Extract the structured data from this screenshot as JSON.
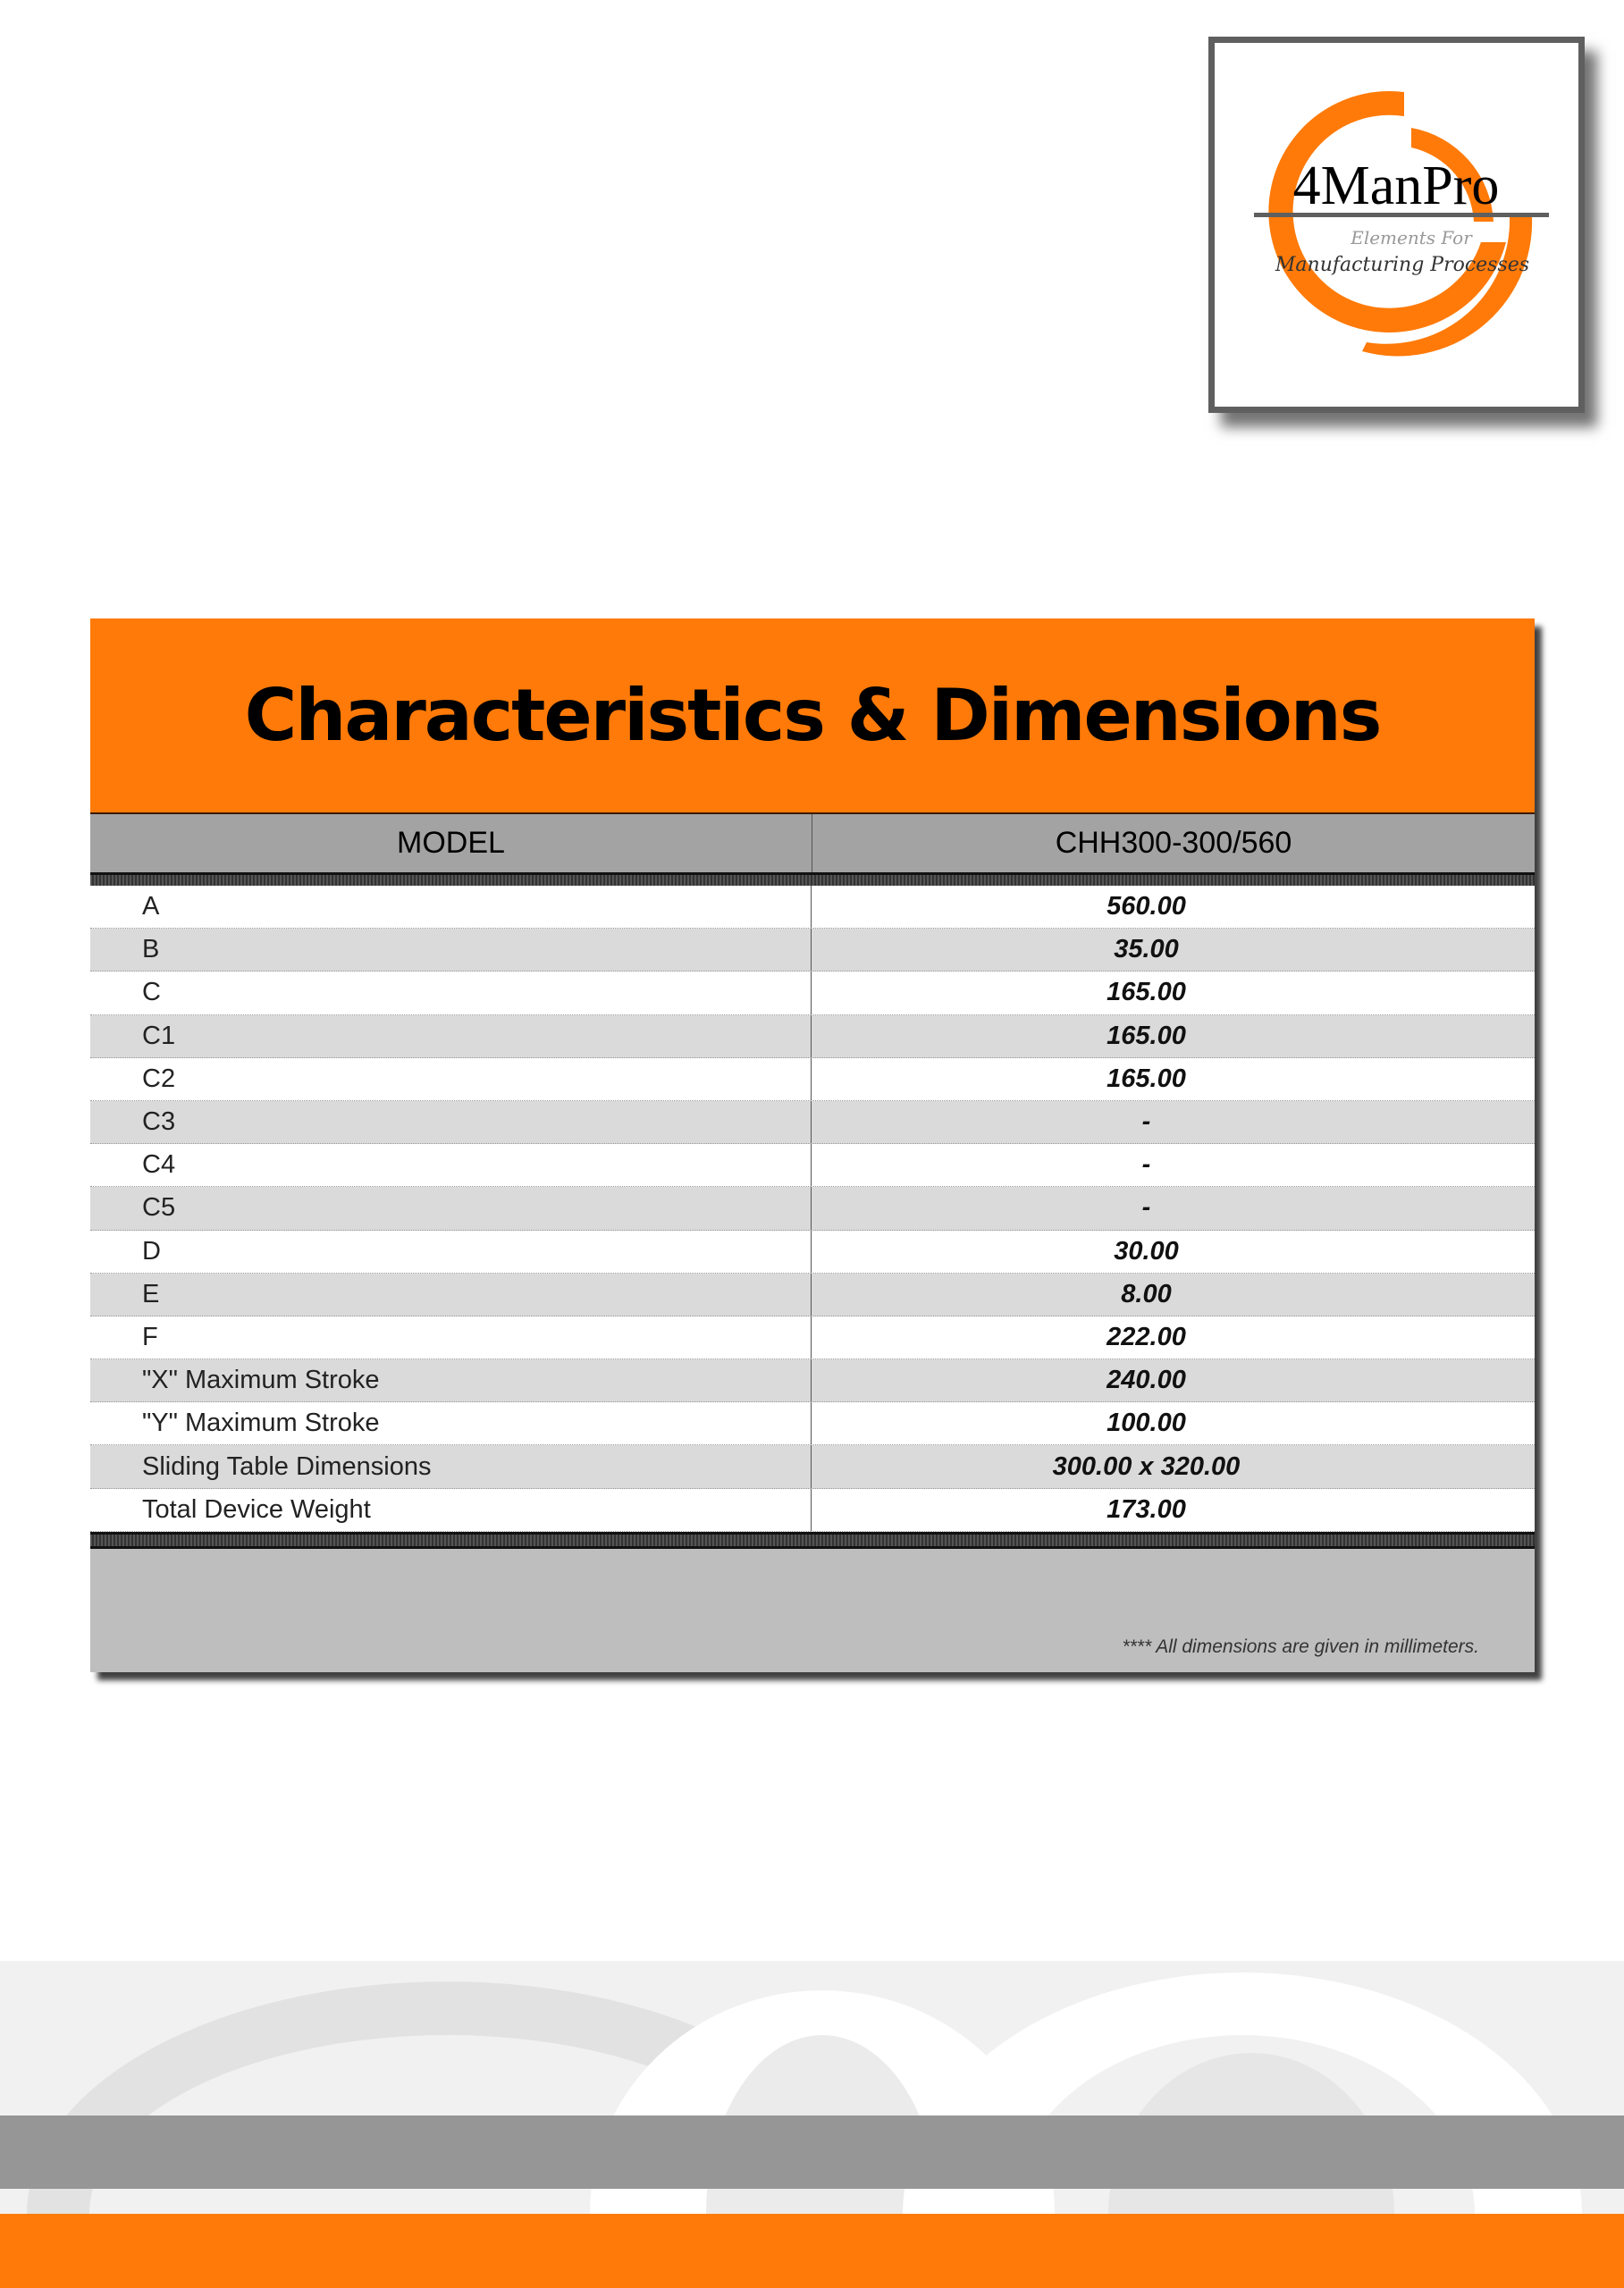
{
  "logo": {
    "brand": "4ManPro",
    "tagline_1": "Elements For",
    "tagline_2": "Manufacturing Processes",
    "accent": "#ff7a08"
  },
  "table": {
    "title": "Characteristics & Dimensions",
    "header": {
      "label": "MODEL",
      "value": "CHH300-300/560"
    },
    "rows": [
      {
        "label": "A",
        "value": "560.00"
      },
      {
        "label": "B",
        "value": "35.00"
      },
      {
        "label": "C",
        "value": "165.00"
      },
      {
        "label": "C1",
        "value": "165.00"
      },
      {
        "label": "C2",
        "value": "165.00"
      },
      {
        "label": "C3",
        "value": "-"
      },
      {
        "label": "C4",
        "value": "-"
      },
      {
        "label": "C5",
        "value": "-"
      },
      {
        "label": "D",
        "value": "30.00"
      },
      {
        "label": "E",
        "value": "8.00"
      },
      {
        "label": "F",
        "value": "222.00"
      },
      {
        "label": "\"X\" Maximum Stroke",
        "value": "240.00"
      },
      {
        "label": "\"Y\" Maximum Stroke",
        "value": "100.00"
      },
      {
        "label": "Sliding Table Dimensions",
        "value": "300.00 x 320.00"
      },
      {
        "label": "Total Device Weight",
        "value": "173.00"
      }
    ],
    "note": "**** All dimensions are given in millimeters."
  },
  "colors": {
    "orange": "#ff7a08",
    "header_gray": "#a3a3a3",
    "footer_gray": "#bebebe",
    "band_gray": "#969696"
  }
}
